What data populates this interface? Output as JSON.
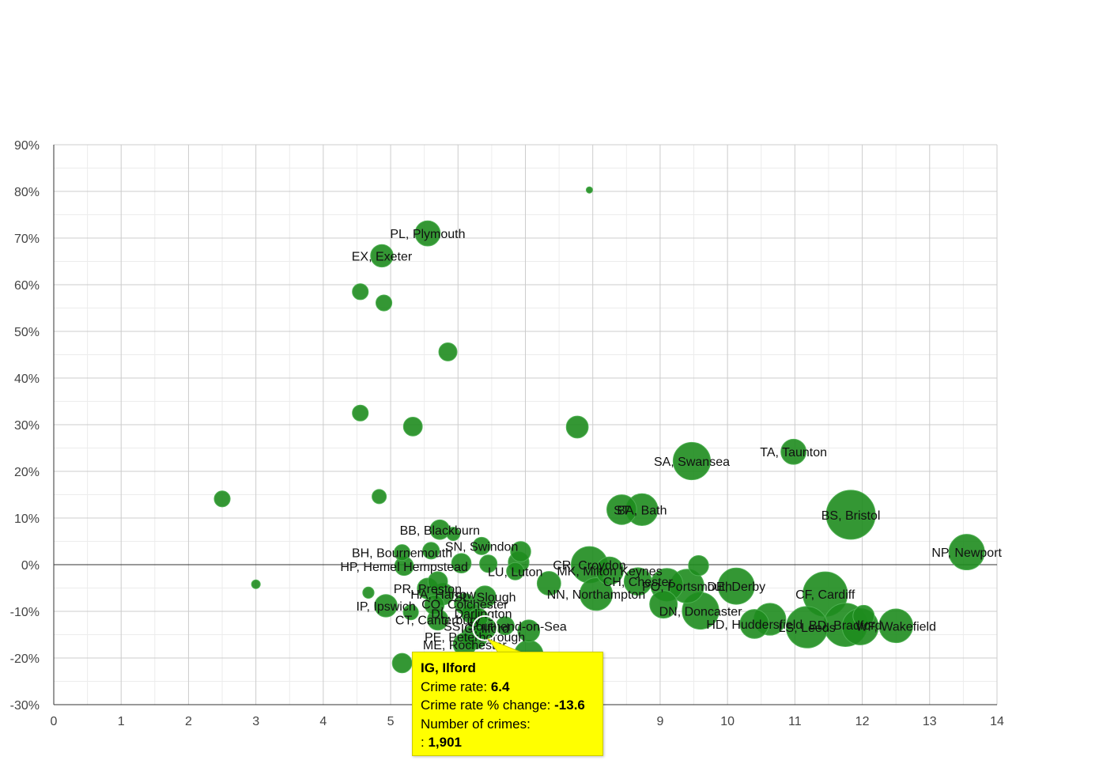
{
  "colors": {
    "bubble_fill": "#1e8c1e",
    "bubble_stroke": "#4caf50",
    "tooltip_bg": "#ffff00",
    "axis": "#333333",
    "grid_major": "#cccccc",
    "grid_minor": "#ececec"
  },
  "chart_data": {
    "type": "scatter",
    "subtype": "bubble",
    "title": "",
    "xlabel": "",
    "ylabel": "",
    "xlim": [
      0,
      14
    ],
    "ylim": [
      -30,
      90
    ],
    "x_ticks": [
      0,
      1,
      2,
      3,
      4,
      5,
      6,
      7,
      8,
      9,
      10,
      11,
      12,
      13,
      14
    ],
    "x_tick_labels": [
      "0",
      "1",
      "2",
      "3",
      "4",
      "5",
      "6",
      "7",
      "8",
      "9",
      "10",
      "11",
      "12",
      "13",
      "14"
    ],
    "y_ticks": [
      90,
      80,
      70,
      60,
      50,
      40,
      30,
      20,
      10,
      0,
      -10,
      -20,
      -30
    ],
    "y_tick_labels": [
      "90%",
      "80%",
      "70%",
      "60%",
      "50%",
      "40%",
      "30%",
      "20%",
      "10%",
      "0%",
      "-10%",
      "-20%",
      "-30%"
    ],
    "grid": true,
    "x_label": "Crime rate",
    "y_label": "Crime rate % change",
    "size_label": "Number of crimes",
    "points": [
      {
        "label": "",
        "x": 7.95,
        "y": 80.3,
        "size": 150
      },
      {
        "label": "PL, Plymouth",
        "x": 5.55,
        "y": 71.0,
        "size": 2500
      },
      {
        "label": "EX, Exeter",
        "x": 4.87,
        "y": 66.2,
        "size": 2000
      },
      {
        "label": "",
        "x": 4.55,
        "y": 58.5,
        "size": 1000
      },
      {
        "label": "",
        "x": 4.9,
        "y": 56.1,
        "size": 1000
      },
      {
        "label": "",
        "x": 5.85,
        "y": 45.6,
        "size": 1300
      },
      {
        "label": "",
        "x": 4.55,
        "y": 32.5,
        "size": 1000
      },
      {
        "label": "",
        "x": 5.33,
        "y": 29.6,
        "size": 1400
      },
      {
        "label": "",
        "x": 7.77,
        "y": 29.5,
        "size": 1900
      },
      {
        "label": "SA, Swansea",
        "x": 9.47,
        "y": 22.2,
        "size": 5500
      },
      {
        "label": "TA, Taunton",
        "x": 10.98,
        "y": 24.2,
        "size": 2500
      },
      {
        "label": "",
        "x": 2.5,
        "y": 14.1,
        "size": 1000
      },
      {
        "label": "",
        "x": 4.83,
        "y": 14.6,
        "size": 800
      },
      {
        "label": "ST",
        "x": 8.43,
        "y": 11.8,
        "size": 3500
      },
      {
        "label": "BA, Bath",
        "x": 8.73,
        "y": 11.8,
        "size": 4000
      },
      {
        "label": "BS, Bristol",
        "x": 11.83,
        "y": 10.7,
        "size": 9500
      },
      {
        "label": "NP, Newport",
        "x": 13.55,
        "y": 2.7,
        "size": 5000
      },
      {
        "label": "BB, Blackburn",
        "x": 5.73,
        "y": 7.5,
        "size": 1500
      },
      {
        "label": "",
        "x": 5.93,
        "y": 6.6,
        "size": 700
      },
      {
        "label": "SN, Swindon",
        "x": 6.35,
        "y": 4.0,
        "size": 1200
      },
      {
        "label": "BH, Bournemouth",
        "x": 5.17,
        "y": 2.6,
        "size": 1000
      },
      {
        "label": "",
        "x": 5.6,
        "y": 3.0,
        "size": 1100
      },
      {
        "label": "",
        "x": 6.93,
        "y": 2.8,
        "size": 1600
      },
      {
        "label": "HP, Hemel Hempstead",
        "x": 5.2,
        "y": -0.3,
        "size": 1400
      },
      {
        "label": "",
        "x": 6.05,
        "y": 0.3,
        "size": 1500
      },
      {
        "label": "",
        "x": 6.45,
        "y": 0.2,
        "size": 1200
      },
      {
        "label": "",
        "x": 6.9,
        "y": 0.5,
        "size": 1700
      },
      {
        "label": "CR, Croydon",
        "x": 7.95,
        "y": 0.0,
        "size": 5200
      },
      {
        "label": "MK, Milton Keynes",
        "x": 8.25,
        "y": -1.3,
        "size": 3000
      },
      {
        "label": "",
        "x": 9.57,
        "y": -0.2,
        "size": 1600
      },
      {
        "label": "LU, Luton",
        "x": 6.85,
        "y": -1.4,
        "size": 1200
      },
      {
        "label": "",
        "x": 7.35,
        "y": -4.0,
        "size": 2200
      },
      {
        "label": "CH, Chester",
        "x": 8.67,
        "y": -3.6,
        "size": 3000
      },
      {
        "label": "",
        "x": 9.1,
        "y": -4.3,
        "size": 4200
      },
      {
        "label": "PO, Portsmouth",
        "x": 9.4,
        "y": -4.6,
        "size": 4500
      },
      {
        "label": "DE, Derby",
        "x": 10.13,
        "y": -4.6,
        "size": 5200
      },
      {
        "label": "",
        "x": 5.7,
        "y": -3.6,
        "size": 1500
      },
      {
        "label": "PR, Preston",
        "x": 5.55,
        "y": -5.1,
        "size": 1700
      },
      {
        "label": "HA, Harrow",
        "x": 5.78,
        "y": -6.3,
        "size": 1800
      },
      {
        "label": "SL, Slough",
        "x": 6.4,
        "y": -6.9,
        "size": 1900
      },
      {
        "label": "",
        "x": 4.67,
        "y": -6.0,
        "size": 500
      },
      {
        "label": "",
        "x": 3.0,
        "y": -4.2,
        "size": 300
      },
      {
        "label": "NN, Northampton",
        "x": 8.05,
        "y": -6.3,
        "size": 4200
      },
      {
        "label": "CF, Cardiff",
        "x": 11.45,
        "y": -6.3,
        "size": 7800
      },
      {
        "label": "IP, Ipswich",
        "x": 4.93,
        "y": -8.8,
        "size": 2000
      },
      {
        "label": "CO, Colchester",
        "x": 6.1,
        "y": -8.4,
        "size": 1700
      },
      {
        "label": "",
        "x": 5.65,
        "y": -8.6,
        "size": 1500
      },
      {
        "label": "DL, Darlington",
        "x": 6.2,
        "y": -10.4,
        "size": 1600
      },
      {
        "label": "DN, Doncaster",
        "x": 9.6,
        "y": -9.9,
        "size": 5300
      },
      {
        "label": "",
        "x": 9.05,
        "y": -8.5,
        "size": 3000
      },
      {
        "label": "",
        "x": 5.3,
        "y": -10.2,
        "size": 900
      },
      {
        "label": "CT, Canterbury",
        "x": 5.7,
        "y": -11.8,
        "size": 1700
      },
      {
        "label": "",
        "x": 6.3,
        "y": -11.4,
        "size": 1500
      },
      {
        "label": "HD, Huddersfield",
        "x": 10.4,
        "y": -12.7,
        "size": 3300
      },
      {
        "label": "",
        "x": 10.63,
        "y": -11.7,
        "size": 4000
      },
      {
        "label": "LS, Leeds",
        "x": 11.18,
        "y": -13.4,
        "size": 6800
      },
      {
        "label": "BD, Bradford",
        "x": 11.75,
        "y": -12.9,
        "size": 7400
      },
      {
        "label": "",
        "x": 11.97,
        "y": -13.3,
        "size": 5200
      },
      {
        "label": "",
        "x": 12.02,
        "y": -11.0,
        "size": 1800
      },
      {
        "label": "WF, Wakefield",
        "x": 12.5,
        "y": -13.1,
        "size": 4500
      },
      {
        "label": "IG, Ilford",
        "x": 6.4,
        "y": -13.6,
        "size": 1901
      },
      {
        "label": "SS, Southend-on-Sea",
        "x": 6.7,
        "y": -13.1,
        "size": 1300
      },
      {
        "label": "",
        "x": 7.05,
        "y": -14.2,
        "size": 1900
      },
      {
        "label": "PE, Peterborough",
        "x": 6.25,
        "y": -15.4,
        "size": 2500
      },
      {
        "label": "ME, Rochester",
        "x": 6.1,
        "y": -17.1,
        "size": 2100
      },
      {
        "label": "",
        "x": 7.05,
        "y": -19.3,
        "size": 3300
      },
      {
        "label": "",
        "x": 5.17,
        "y": -21.1,
        "size": 1500
      }
    ],
    "tooltip": {
      "title": "IG, Ilford",
      "rate_label": "Crime rate:",
      "rate_value": "6.4",
      "change_label": "Crime rate % change:",
      "change_value": "-13.6",
      "count_label": "Number of crimes:",
      "count_prefix": ":",
      "count_value": "1,901"
    }
  }
}
